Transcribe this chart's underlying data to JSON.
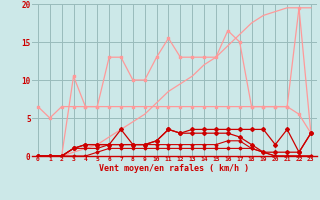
{
  "x": [
    0,
    1,
    2,
    3,
    4,
    5,
    6,
    7,
    8,
    9,
    10,
    11,
    12,
    13,
    14,
    15,
    16,
    17,
    18,
    19,
    20,
    21,
    22,
    23
  ],
  "line_flat": [
    6.5,
    5.0,
    6.5,
    6.5,
    6.5,
    6.5,
    6.5,
    6.5,
    6.5,
    6.5,
    6.5,
    6.5,
    6.5,
    6.5,
    6.5,
    6.5,
    6.5,
    6.5,
    6.5,
    6.5,
    6.5,
    6.5,
    5.5,
    3.0
  ],
  "line_jagged": [
    0,
    0,
    0,
    10.5,
    6.5,
    6.5,
    13.0,
    13.0,
    10.0,
    10.0,
    13.0,
    15.5,
    13.0,
    13.0,
    13.0,
    13.0,
    16.5,
    15.0,
    6.5,
    6.5,
    6.5,
    6.5,
    19.5,
    3.0
  ],
  "line_ramp": [
    0.0,
    0.0,
    0.0,
    0.5,
    1.0,
    1.5,
    2.5,
    3.5,
    4.5,
    5.5,
    7.0,
    8.5,
    9.5,
    10.5,
    12.0,
    13.0,
    14.5,
    16.0,
    17.5,
    18.5,
    19.0,
    19.5,
    19.5,
    19.5
  ],
  "line_dark1": [
    0,
    0,
    0,
    1.0,
    1.5,
    1.5,
    1.5,
    3.5,
    1.5,
    1.5,
    2.0,
    3.5,
    3.0,
    3.5,
    3.5,
    3.5,
    3.5,
    3.5,
    3.5,
    3.5,
    1.5,
    3.5,
    0.5,
    3.0
  ],
  "line_dark2": [
    0,
    0,
    0,
    1.0,
    1.5,
    1.5,
    1.5,
    1.5,
    1.5,
    1.5,
    2.0,
    3.5,
    3.0,
    3.0,
    3.0,
    3.0,
    3.0,
    2.5,
    1.5,
    0.5,
    0.5,
    0.5,
    0.5,
    3.0
  ],
  "line_dark3": [
    0,
    0,
    0,
    1.0,
    1.0,
    1.0,
    1.5,
    1.5,
    1.5,
    1.5,
    1.5,
    1.5,
    1.5,
    1.5,
    1.5,
    1.5,
    2.0,
    2.0,
    1.0,
    0.5,
    0.0,
    0.0,
    0.0,
    0.0
  ],
  "line_dark4": [
    0,
    0,
    0,
    0,
    0,
    0.5,
    1.0,
    1.0,
    1.0,
    1.0,
    1.0,
    1.0,
    1.0,
    1.0,
    1.0,
    1.0,
    1.0,
    1.0,
    1.0,
    0.5,
    0.0,
    0.0,
    0.0,
    0.0
  ],
  "xlabel": "Vent moyen/en rafales ( km/h )",
  "ylim": [
    0,
    20
  ],
  "xlim": [
    -0.5,
    23.5
  ],
  "bg_color": "#cce8e8",
  "grid_color": "#99bbbb",
  "color_light": "#ff9999",
  "color_dark": "#cc0000",
  "tick_color": "#cc0000"
}
